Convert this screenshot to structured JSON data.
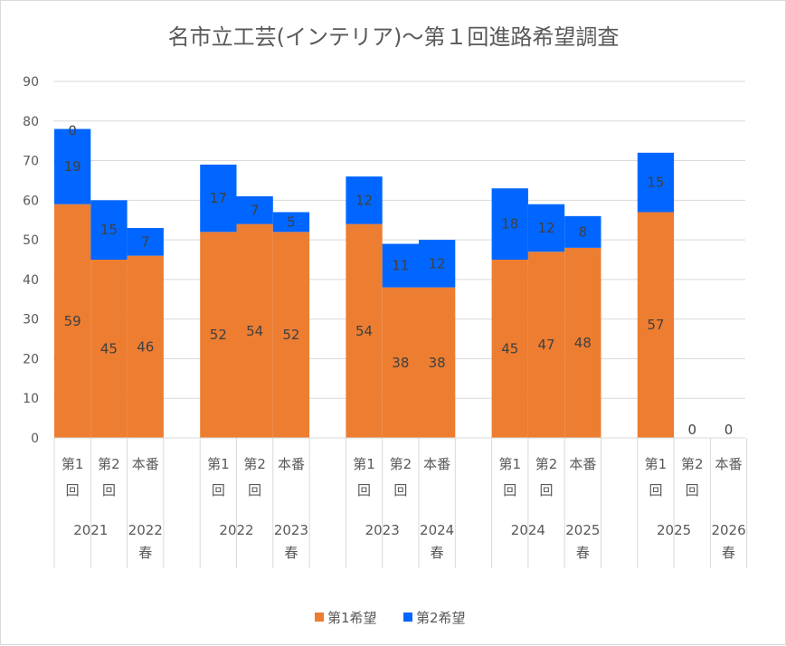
{
  "chart_data": {
    "type": "bar",
    "stacked": true,
    "title": "名市立工芸(インテリア)～第１回進路希望調査",
    "ylim": [
      0,
      90
    ],
    "yticks": [
      0,
      10,
      20,
      30,
      40,
      50,
      60,
      70,
      80,
      90
    ],
    "grid": true,
    "legend_position": "bottom",
    "groups": [
      {
        "label": "2021",
        "categories": [
          "第1回",
          "第2回"
        ]
      },
      {
        "label": "2022春",
        "categories": [
          "本番"
        ]
      },
      {
        "label": "2022",
        "categories": [
          "第1回",
          "第2回"
        ]
      },
      {
        "label": "2023春",
        "categories": [
          "本番"
        ]
      },
      {
        "label": "2023",
        "categories": [
          "第1回",
          "第2回"
        ]
      },
      {
        "label": "2024春",
        "categories": [
          "本番"
        ]
      },
      {
        "label": "2024",
        "categories": [
          "第1回",
          "第2回"
        ]
      },
      {
        "label": "2025春",
        "categories": [
          "本番"
        ]
      },
      {
        "label": "2025",
        "categories": [
          "第1回",
          "第2回"
        ]
      },
      {
        "label": "2026春",
        "categories": [
          "本番"
        ]
      }
    ],
    "categories": [
      "第1回",
      "第2回",
      "本番",
      "第1回",
      "第2回",
      "本番",
      "第1回",
      "第2回",
      "本番",
      "第1回",
      "第2回",
      "本番",
      "第1回",
      "第2回",
      "本番"
    ],
    "series": [
      {
        "name": "第1希望",
        "color": "#ED7D31",
        "values": [
          59,
          45,
          46,
          52,
          54,
          52,
          54,
          38,
          38,
          45,
          47,
          48,
          57,
          0,
          0
        ]
      },
      {
        "name": "第2希望",
        "color": "#0066FF",
        "values": [
          19,
          15,
          7,
          17,
          7,
          5,
          12,
          11,
          12,
          18,
          12,
          8,
          15,
          0,
          0
        ]
      }
    ],
    "labels": {
      "第1希望": [
        "59",
        "45",
        "46",
        "52",
        "54",
        "52",
        "54",
        "38",
        "38",
        "45",
        "47",
        "48",
        "57",
        "",
        ""
      ],
      "第2希望": [
        "19",
        "15",
        "7",
        "17",
        "7",
        "5",
        "12",
        "11",
        "12",
        "18",
        "12",
        "8",
        "15",
        "0",
        "0"
      ]
    },
    "extra_labels": [
      "0"
    ]
  }
}
